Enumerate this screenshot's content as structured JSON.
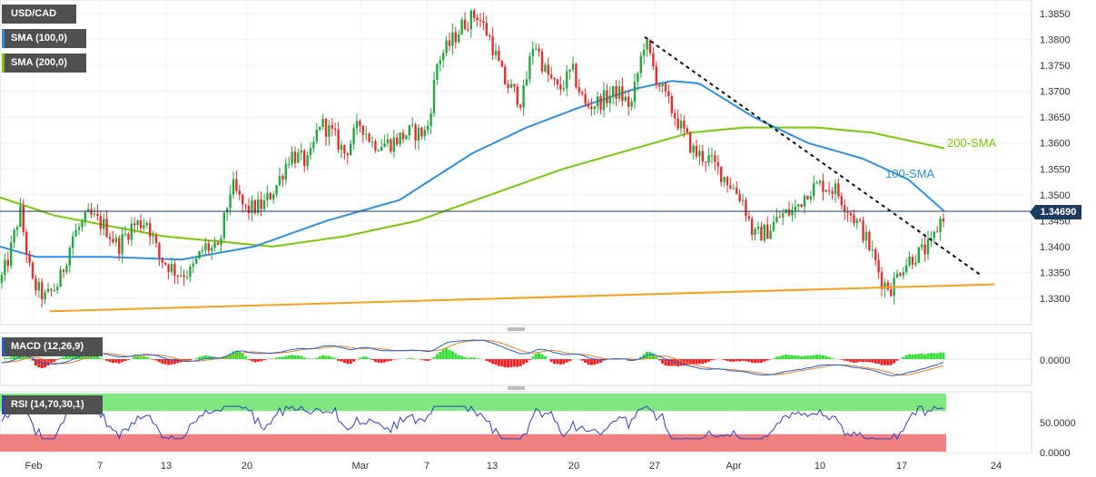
{
  "legend": {
    "symbol": "USD/CAD",
    "sma100": "SMA (100,0)",
    "sma200": "SMA (200,0)",
    "macd": "MACD (12,26,9)",
    "rsi": "RSI (14,70,30,1)"
  },
  "colors": {
    "bull": "#26a641",
    "bear": "#e03030",
    "sma100": "#2f8fe0",
    "sma200": "#7ac70c",
    "support": "#f5a020",
    "rsi_overbought": "#7ee87e",
    "rsi_oversold": "#f08080",
    "rsi_line": "#3040c0",
    "macd_line": "#2060d0",
    "signal_line": "#f08020"
  },
  "chart_data": {
    "type": "candlestick",
    "symbol": "USD/CAD",
    "last_price": "1.34690",
    "y_ticks": [
      "1.3850",
      "1.3800",
      "1.3750",
      "1.3700",
      "1.3650",
      "1.3600",
      "1.3550",
      "1.3500",
      "1.3450",
      "1.3400",
      "1.3350",
      "1.3300"
    ],
    "ylim": [
      1.3265,
      1.3865
    ],
    "x_ticks": [
      "Feb",
      "7",
      "13",
      "20",
      "Mar",
      "7",
      "13",
      "20",
      "27",
      "Apr",
      "10",
      "17",
      "24"
    ],
    "annotations": {
      "sma100": "100-SMA",
      "sma200": "200-SMA"
    },
    "price_path": [
      [
        0,
        1.333
      ],
      [
        10,
        1.338
      ],
      [
        22,
        1.347
      ],
      [
        35,
        1.333
      ],
      [
        50,
        1.33
      ],
      [
        65,
        1.333
      ],
      [
        80,
        1.342
      ],
      [
        98,
        1.346
      ],
      [
        115,
        1.344
      ],
      [
        130,
        1.34
      ],
      [
        145,
        1.344
      ],
      [
        162,
        1.345
      ],
      [
        175,
        1.338
      ],
      [
        195,
        1.335
      ],
      [
        210,
        1.335
      ],
      [
        225,
        1.34
      ],
      [
        240,
        1.339
      ],
      [
        255,
        1.352
      ],
      [
        270,
        1.347
      ],
      [
        290,
        1.348
      ],
      [
        305,
        1.352
      ],
      [
        320,
        1.358
      ],
      [
        340,
        1.356
      ],
      [
        352,
        1.364
      ],
      [
        365,
        1.362
      ],
      [
        380,
        1.358
      ],
      [
        397,
        1.364
      ],
      [
        410,
        1.36
      ],
      [
        430,
        1.36
      ],
      [
        450,
        1.362
      ],
      [
        470,
        1.362
      ],
      [
        482,
        1.376
      ],
      [
        495,
        1.379
      ],
      [
        510,
        1.383
      ],
      [
        525,
        1.385
      ],
      [
        540,
        1.38
      ],
      [
        555,
        1.372
      ],
      [
        575,
        1.368
      ],
      [
        588,
        1.38
      ],
      [
        600,
        1.374
      ],
      [
        615,
        1.37
      ],
      [
        630,
        1.374
      ],
      [
        645,
        1.367
      ],
      [
        660,
        1.368
      ],
      [
        680,
        1.37
      ],
      [
        695,
        1.367
      ],
      [
        710,
        1.38
      ],
      [
        722,
        1.373
      ],
      [
        735,
        1.368
      ],
      [
        750,
        1.363
      ],
      [
        765,
        1.358
      ],
      [
        780,
        1.357
      ],
      [
        800,
        1.353
      ],
      [
        818,
        1.349
      ],
      [
        830,
        1.342
      ],
      [
        845,
        1.343
      ],
      [
        860,
        1.346
      ],
      [
        875,
        1.347
      ],
      [
        890,
        1.351
      ],
      [
        905,
        1.352
      ],
      [
        920,
        1.351
      ],
      [
        935,
        1.347
      ],
      [
        950,
        1.343
      ],
      [
        962,
        1.338
      ],
      [
        972,
        1.333
      ],
      [
        982,
        1.332
      ],
      [
        992,
        1.336
      ],
      [
        1005,
        1.338
      ],
      [
        1015,
        1.339
      ],
      [
        1025,
        1.34
      ],
      [
        1035,
        1.345
      ],
      [
        1042,
        1.3469
      ]
    ],
    "sma100": [
      [
        0,
        1.34
      ],
      [
        40,
        1.338
      ],
      [
        120,
        1.338
      ],
      [
        200,
        1.3375
      ],
      [
        280,
        1.34
      ],
      [
        360,
        1.345
      ],
      [
        440,
        1.349
      ],
      [
        520,
        1.358
      ],
      [
        580,
        1.363
      ],
      [
        640,
        1.367
      ],
      [
        700,
        1.3705
      ],
      [
        740,
        1.372
      ],
      [
        770,
        1.3715
      ],
      [
        830,
        1.365
      ],
      [
        890,
        1.36
      ],
      [
        950,
        1.357
      ],
      [
        1000,
        1.353
      ],
      [
        1042,
        1.3465
      ]
    ],
    "sma200": [
      [
        0,
        1.3495
      ],
      [
        60,
        1.346
      ],
      [
        120,
        1.344
      ],
      [
        180,
        1.342
      ],
      [
        240,
        1.341
      ],
      [
        300,
        1.34
      ],
      [
        380,
        1.342
      ],
      [
        460,
        1.345
      ],
      [
        540,
        1.35
      ],
      [
        620,
        1.355
      ],
      [
        700,
        1.359
      ],
      [
        760,
        1.362
      ],
      [
        820,
        1.363
      ],
      [
        900,
        1.363
      ],
      [
        960,
        1.362
      ],
      [
        1040,
        1.359
      ]
    ],
    "trendlines": {
      "resistance": [
        [
          710,
          1.3805
        ],
        [
          1080,
          1.3345
        ]
      ],
      "support": [
        [
          55,
          1.3275
        ],
        [
          1095,
          1.3327
        ]
      ]
    },
    "macd": {
      "y_ticks": [
        "0.0000"
      ]
    },
    "rsi": {
      "y_ticks": [
        "50.0000",
        "0.0000"
      ],
      "upper": 70,
      "lower": 30
    }
  }
}
